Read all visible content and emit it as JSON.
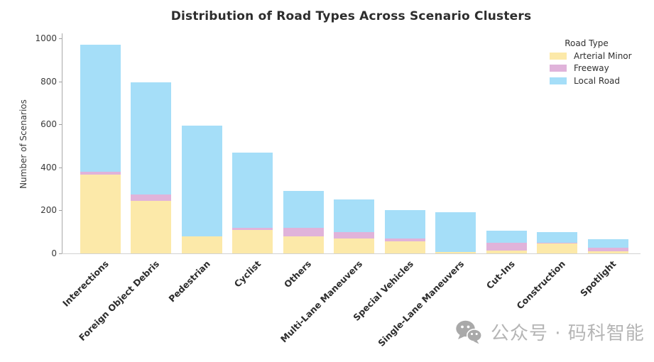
{
  "title": "Distribution of Road Types Across Scenario Clusters",
  "watermark": {
    "icon": "wechat-icon",
    "text": "公众号 · 码科智能"
  },
  "axis": {
    "tick_color": "#3a3a3a",
    "spine_color": "#a9a9a9",
    "baseline_color": "#d2d2d2"
  },
  "chart_data": {
    "type": "bar",
    "stacked": true,
    "title": "Distribution of Road Types Across Scenario Clusters",
    "xlabel": "",
    "ylabel": "Number of Scenarios",
    "ylim": [
      0,
      1000
    ],
    "yticks": [
      0,
      200,
      400,
      600,
      800,
      1000
    ],
    "grid": false,
    "legend_title": "Road Type",
    "legend_position": "upper right",
    "categories": [
      "Interections",
      "Foreign Object Debris",
      "Pedestrian",
      "Cyclist",
      "Others",
      "Multi-Lane Maneuvers",
      "Special Vehicles",
      "Single-Lane Maneuvers",
      "Cut-Ins",
      "Construction",
      "Spotlight"
    ],
    "series": [
      {
        "name": "Arterial Minor",
        "color": "#fce9a9",
        "values": [
          365,
          245,
          80,
          110,
          80,
          70,
          55,
          5,
          12,
          45,
          10
        ]
      },
      {
        "name": "Freeway",
        "color": "#e0b3da",
        "values": [
          15,
          30,
          0,
          10,
          40,
          30,
          15,
          0,
          38,
          5,
          18
        ]
      },
      {
        "name": "Local Road",
        "color": "#a5def8",
        "values": [
          590,
          520,
          515,
          350,
          172,
          150,
          132,
          185,
          55,
          50,
          37
        ]
      }
    ]
  }
}
